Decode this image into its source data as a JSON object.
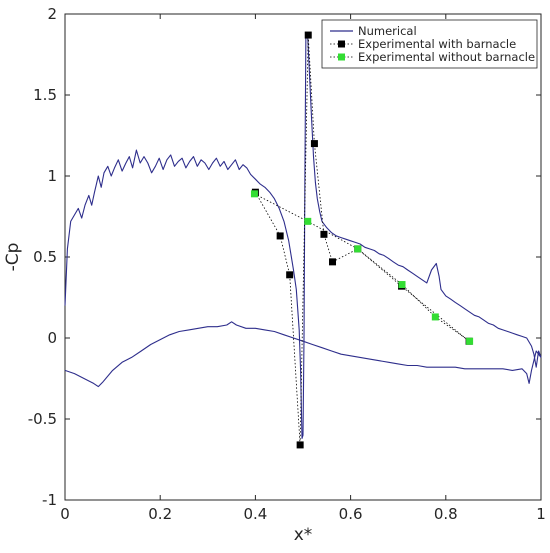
{
  "chart_data": {
    "type": "line",
    "xlabel": "x*",
    "ylabel": "-Cp",
    "xlim": [
      0,
      1
    ],
    "ylim": [
      -1,
      2
    ],
    "xticks": [
      0,
      0.2,
      0.4,
      0.6,
      0.8,
      1
    ],
    "xtick_labels": [
      "0",
      "0.2",
      "0.4",
      "0.6",
      "0.8",
      "1"
    ],
    "yticks": [
      -1,
      -0.5,
      0,
      0.5,
      1,
      1.5,
      2
    ],
    "ytick_labels": [
      "-1",
      "-0.5",
      "0",
      "0.5",
      "1",
      "1.5",
      "2"
    ],
    "grid": false,
    "legend_position": "top-right",
    "series": [
      {
        "name": "Numerical",
        "color": "#2e2e8c",
        "style": "line",
        "curves": [
          [
            [
              0.0,
              0.2
            ],
            [
              0.005,
              0.55
            ],
            [
              0.012,
              0.72
            ],
            [
              0.02,
              0.76
            ],
            [
              0.028,
              0.8
            ],
            [
              0.035,
              0.74
            ],
            [
              0.042,
              0.82
            ],
            [
              0.05,
              0.88
            ],
            [
              0.056,
              0.82
            ],
            [
              0.062,
              0.9
            ],
            [
              0.07,
              1.0
            ],
            [
              0.076,
              0.93
            ],
            [
              0.082,
              1.02
            ],
            [
              0.09,
              1.06
            ],
            [
              0.097,
              1.0
            ],
            [
              0.104,
              1.05
            ],
            [
              0.112,
              1.1
            ],
            [
              0.12,
              1.03
            ],
            [
              0.128,
              1.08
            ],
            [
              0.135,
              1.12
            ],
            [
              0.142,
              1.05
            ],
            [
              0.15,
              1.16
            ],
            [
              0.158,
              1.08
            ],
            [
              0.166,
              1.12
            ],
            [
              0.174,
              1.08
            ],
            [
              0.182,
              1.02
            ],
            [
              0.19,
              1.06
            ],
            [
              0.198,
              1.11
            ],
            [
              0.206,
              1.04
            ],
            [
              0.214,
              1.1
            ],
            [
              0.222,
              1.13
            ],
            [
              0.23,
              1.06
            ],
            [
              0.238,
              1.09
            ],
            [
              0.246,
              1.11
            ],
            [
              0.254,
              1.05
            ],
            [
              0.262,
              1.09
            ],
            [
              0.27,
              1.12
            ],
            [
              0.278,
              1.06
            ],
            [
              0.286,
              1.1
            ],
            [
              0.294,
              1.08
            ],
            [
              0.302,
              1.04
            ],
            [
              0.31,
              1.08
            ],
            [
              0.318,
              1.11
            ],
            [
              0.326,
              1.06
            ],
            [
              0.334,
              1.09
            ],
            [
              0.342,
              1.04
            ],
            [
              0.35,
              1.07
            ],
            [
              0.358,
              1.1
            ],
            [
              0.366,
              1.04
            ],
            [
              0.374,
              1.07
            ],
            [
              0.382,
              1.05
            ],
            [
              0.39,
              1.01
            ],
            [
              0.4,
              0.98
            ],
            [
              0.41,
              0.95
            ],
            [
              0.42,
              0.93
            ],
            [
              0.43,
              0.9
            ],
            [
              0.44,
              0.86
            ],
            [
              0.45,
              0.8
            ],
            [
              0.46,
              0.72
            ],
            [
              0.47,
              0.6
            ],
            [
              0.48,
              0.42
            ],
            [
              0.486,
              0.3
            ],
            [
              0.492,
              0.05
            ],
            [
              0.495,
              -0.2
            ],
            [
              0.498,
              -0.62
            ],
            [
              0.5,
              -0.6
            ],
            [
              0.502,
              0.0
            ],
            [
              0.504,
              1.0
            ],
            [
              0.506,
              1.88
            ],
            [
              0.51,
              1.85
            ],
            [
              0.514,
              1.6
            ],
            [
              0.518,
              1.35
            ],
            [
              0.522,
              1.12
            ],
            [
              0.526,
              0.96
            ],
            [
              0.53,
              0.86
            ],
            [
              0.535,
              0.78
            ],
            [
              0.54,
              0.72
            ],
            [
              0.55,
              0.68
            ],
            [
              0.56,
              0.65
            ],
            [
              0.57,
              0.63
            ],
            [
              0.58,
              0.62
            ],
            [
              0.59,
              0.61
            ],
            [
              0.6,
              0.6
            ],
            [
              0.61,
              0.59
            ],
            [
              0.62,
              0.58
            ],
            [
              0.63,
              0.56
            ],
            [
              0.64,
              0.55
            ],
            [
              0.65,
              0.54
            ],
            [
              0.66,
              0.52
            ],
            [
              0.67,
              0.51
            ],
            [
              0.68,
              0.49
            ],
            [
              0.69,
              0.47
            ],
            [
              0.7,
              0.45
            ],
            [
              0.71,
              0.44
            ],
            [
              0.72,
              0.42
            ],
            [
              0.73,
              0.4
            ],
            [
              0.74,
              0.38
            ],
            [
              0.75,
              0.36
            ],
            [
              0.76,
              0.34
            ],
            [
              0.77,
              0.42
            ],
            [
              0.78,
              0.46
            ],
            [
              0.786,
              0.38
            ],
            [
              0.79,
              0.3
            ],
            [
              0.8,
              0.26
            ],
            [
              0.81,
              0.24
            ],
            [
              0.82,
              0.22
            ],
            [
              0.83,
              0.2
            ],
            [
              0.84,
              0.18
            ],
            [
              0.85,
              0.16
            ],
            [
              0.86,
              0.14
            ],
            [
              0.87,
              0.13
            ],
            [
              0.88,
              0.11
            ],
            [
              0.89,
              0.09
            ],
            [
              0.9,
              0.08
            ],
            [
              0.91,
              0.06
            ],
            [
              0.92,
              0.05
            ],
            [
              0.93,
              0.04
            ],
            [
              0.94,
              0.03
            ],
            [
              0.95,
              0.02
            ],
            [
              0.96,
              0.01
            ],
            [
              0.97,
              0.0
            ],
            [
              0.98,
              -0.05
            ],
            [
              0.985,
              -0.1
            ],
            [
              0.99,
              -0.18
            ],
            [
              0.995,
              -0.08
            ],
            [
              1.0,
              -0.12
            ]
          ],
          [
            [
              0.0,
              -0.2
            ],
            [
              0.02,
              -0.22
            ],
            [
              0.04,
              -0.25
            ],
            [
              0.06,
              -0.28
            ],
            [
              0.07,
              -0.3
            ],
            [
              0.08,
              -0.27
            ],
            [
              0.1,
              -0.2
            ],
            [
              0.12,
              -0.15
            ],
            [
              0.14,
              -0.12
            ],
            [
              0.16,
              -0.08
            ],
            [
              0.18,
              -0.04
            ],
            [
              0.2,
              -0.01
            ],
            [
              0.22,
              0.02
            ],
            [
              0.24,
              0.04
            ],
            [
              0.26,
              0.05
            ],
            [
              0.28,
              0.06
            ],
            [
              0.3,
              0.07
            ],
            [
              0.32,
              0.07
            ],
            [
              0.34,
              0.08
            ],
            [
              0.35,
              0.1
            ],
            [
              0.36,
              0.08
            ],
            [
              0.38,
              0.06
            ],
            [
              0.4,
              0.06
            ],
            [
              0.42,
              0.05
            ],
            [
              0.44,
              0.04
            ],
            [
              0.46,
              0.02
            ],
            [
              0.48,
              0.0
            ],
            [
              0.5,
              -0.02
            ],
            [
              0.52,
              -0.04
            ],
            [
              0.54,
              -0.06
            ],
            [
              0.56,
              -0.08
            ],
            [
              0.58,
              -0.1
            ],
            [
              0.6,
              -0.11
            ],
            [
              0.62,
              -0.12
            ],
            [
              0.64,
              -0.13
            ],
            [
              0.66,
              -0.14
            ],
            [
              0.68,
              -0.15
            ],
            [
              0.7,
              -0.16
            ],
            [
              0.72,
              -0.17
            ],
            [
              0.74,
              -0.17
            ],
            [
              0.76,
              -0.18
            ],
            [
              0.78,
              -0.18
            ],
            [
              0.8,
              -0.18
            ],
            [
              0.82,
              -0.18
            ],
            [
              0.84,
              -0.19
            ],
            [
              0.86,
              -0.19
            ],
            [
              0.88,
              -0.19
            ],
            [
              0.9,
              -0.19
            ],
            [
              0.92,
              -0.19
            ],
            [
              0.94,
              -0.2
            ],
            [
              0.96,
              -0.19
            ],
            [
              0.97,
              -0.22
            ],
            [
              0.975,
              -0.28
            ],
            [
              0.98,
              -0.2
            ],
            [
              0.99,
              -0.08
            ],
            [
              1.0,
              -0.12
            ]
          ]
        ]
      },
      {
        "name": "Experimental with barnacle",
        "color": "#000000",
        "style": "marker-dotted",
        "points": [
          [
            0.4,
            0.9
          ],
          [
            0.452,
            0.63
          ],
          [
            0.472,
            0.39
          ],
          [
            0.494,
            -0.66
          ],
          [
            0.511,
            1.87
          ],
          [
            0.524,
            1.2
          ],
          [
            0.544,
            0.64
          ],
          [
            0.562,
            0.47
          ],
          [
            0.615,
            0.55
          ],
          [
            0.707,
            0.32
          ],
          [
            0.849,
            -0.02
          ]
        ]
      },
      {
        "name": "Experimental without barnacle",
        "color": "#33dd33",
        "style": "marker-dotted",
        "points": [
          [
            0.398,
            0.89
          ],
          [
            0.51,
            0.72
          ],
          [
            0.615,
            0.55
          ],
          [
            0.708,
            0.33
          ],
          [
            0.778,
            0.13
          ],
          [
            0.85,
            -0.02
          ]
        ]
      }
    ]
  }
}
